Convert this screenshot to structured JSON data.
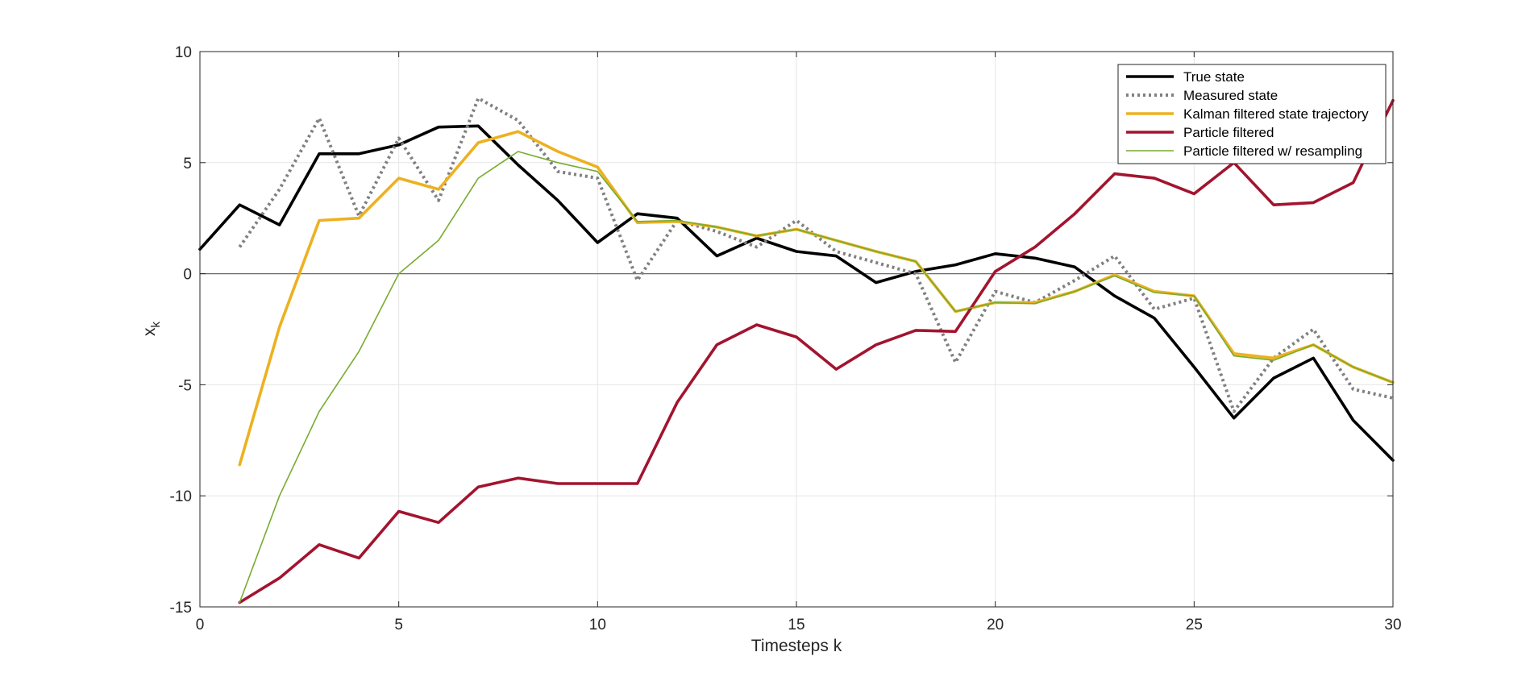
{
  "chart_data": {
    "type": "line",
    "title": "",
    "xlabel": "Timesteps k",
    "ylabel_main": "x",
    "ylabel_sub": "k",
    "xlim": [
      0,
      30
    ],
    "ylim": [
      -15,
      10
    ],
    "xticks": [
      0,
      5,
      10,
      15,
      20,
      25,
      30
    ],
    "yticks": [
      -15,
      -10,
      -5,
      0,
      5,
      10
    ],
    "grid": true,
    "zero_line": true,
    "legend_position": "top-right",
    "series": [
      {
        "name": "True state",
        "color": "#000000",
        "style": "solid-thick",
        "x": [
          0,
          1,
          2,
          3,
          4,
          5,
          6,
          7,
          8,
          9,
          10,
          11,
          12,
          13,
          14,
          15,
          16,
          17,
          18,
          19,
          20,
          21,
          22,
          23,
          24,
          25,
          26,
          27,
          28,
          29,
          30
        ],
        "values": [
          1.1,
          3.1,
          2.2,
          5.4,
          5.4,
          5.8,
          6.6,
          6.65,
          4.9,
          3.3,
          1.4,
          2.7,
          2.5,
          0.8,
          1.6,
          1.0,
          0.8,
          -0.4,
          0.1,
          0.4,
          0.9,
          0.7,
          0.3,
          -1.0,
          -2.0,
          -4.2,
          -6.5,
          -4.7,
          -3.8,
          -6.6,
          -8.4
        ]
      },
      {
        "name": "Measured state",
        "color": "#808080",
        "style": "dotted",
        "x": [
          1,
          2,
          3,
          4,
          5,
          6,
          7,
          8,
          9,
          10,
          11,
          12,
          13,
          14,
          15,
          16,
          17,
          18,
          19,
          20,
          21,
          22,
          23,
          24,
          25,
          26,
          27,
          28,
          29,
          30
        ],
        "values": [
          1.2,
          3.8,
          7.0,
          2.6,
          6.1,
          3.3,
          7.9,
          6.9,
          4.6,
          4.3,
          -0.3,
          2.4,
          1.9,
          1.2,
          2.4,
          1.0,
          0.5,
          0.0,
          -4.0,
          -0.8,
          -1.3,
          -0.3,
          0.8,
          -1.6,
          -1.1,
          -6.2,
          -3.8,
          -2.5,
          -5.2,
          -5.6
        ]
      },
      {
        "name": "Kalman filtered state trajectory",
        "color": "#EDB120",
        "style": "solid-thick",
        "x": [
          1,
          2,
          3,
          4,
          5,
          6,
          7,
          8,
          9,
          10,
          11,
          12,
          13,
          14,
          15,
          16,
          17,
          18,
          19,
          20,
          21,
          22,
          23,
          24,
          25,
          26,
          27,
          28,
          29,
          30
        ],
        "values": [
          -8.6,
          -2.4,
          2.4,
          2.5,
          4.3,
          3.8,
          5.9,
          6.4,
          5.5,
          4.8,
          2.3,
          2.35,
          2.1,
          1.7,
          2.0,
          1.5,
          1.0,
          0.55,
          -1.7,
          -1.3,
          -1.3,
          -0.8,
          -0.05,
          -0.8,
          -1.0,
          -3.6,
          -3.8,
          -3.2,
          -4.2,
          -4.9
        ]
      },
      {
        "name": "Particle filtered",
        "color": "#A2142F",
        "style": "solid-thick",
        "x": [
          1,
          2,
          3,
          4,
          5,
          6,
          7,
          8,
          9,
          10,
          11,
          12,
          13,
          14,
          15,
          16,
          17,
          18,
          19,
          20,
          21,
          22,
          23,
          24,
          25,
          26,
          27,
          28,
          29,
          30
        ],
        "values": [
          -14.8,
          -13.7,
          -12.2,
          -12.8,
          -10.7,
          -11.2,
          -9.6,
          -9.2,
          -9.45,
          -9.45,
          -9.45,
          -5.8,
          -3.2,
          -2.3,
          -2.85,
          -4.3,
          -3.2,
          -2.55,
          -2.6,
          0.1,
          1.2,
          2.7,
          4.5,
          4.3,
          3.6,
          5.0,
          3.1,
          3.2,
          4.1,
          7.8
        ]
      },
      {
        "name": "Particle filtered w/ resampling",
        "color": "#77AC30",
        "style": "solid-thin",
        "x": [
          1,
          2,
          3,
          4,
          5,
          6,
          7,
          8,
          9,
          10,
          11,
          12,
          13,
          14,
          15,
          16,
          17,
          18,
          19,
          20,
          21,
          22,
          23,
          24,
          25,
          26,
          27,
          28,
          29,
          30
        ],
        "values": [
          -14.8,
          -10.0,
          -6.2,
          -3.5,
          0.0,
          1.5,
          4.3,
          5.5,
          5.0,
          4.6,
          2.35,
          2.4,
          2.1,
          1.7,
          2.0,
          1.5,
          1.0,
          0.55,
          -1.7,
          -1.3,
          -1.35,
          -0.8,
          -0.1,
          -0.85,
          -1.0,
          -3.7,
          -3.9,
          -3.2,
          -4.2,
          -4.9
        ]
      }
    ]
  }
}
